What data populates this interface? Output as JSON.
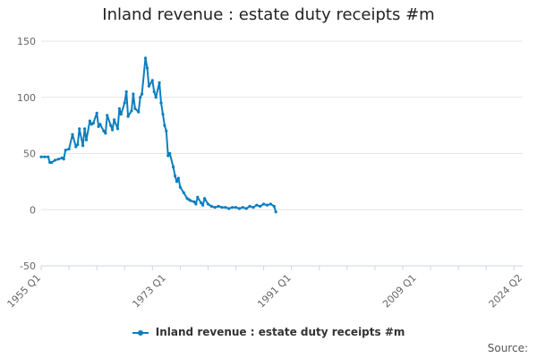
{
  "chart_data": {
    "type": "line",
    "title": "Inland revenue : estate duty receipts #m",
    "xlabel": "",
    "ylabel": "",
    "ylim": [
      -50,
      150
    ],
    "y_ticks": [
      -50,
      0,
      50,
      100,
      150
    ],
    "x_tick_labels": [
      "1955 Q1",
      "1973 Q1",
      "1991 Q1",
      "2009 Q1",
      "2024 Q2"
    ],
    "x_tick_values": [
      1955.0,
      1973.0,
      1991.0,
      2009.0,
      2024.25
    ],
    "xlim": [
      1955.0,
      2024.25
    ],
    "grid": "horizontal",
    "legend_position": "bottom",
    "color": "#0b7fbf",
    "series": [
      {
        "name": "Inland revenue : estate duty receipts #m",
        "x": [
          1955.0,
          1955.5,
          1956.0,
          1956.25,
          1956.5,
          1957.0,
          1957.5,
          1958.0,
          1958.25,
          1958.5,
          1959.0,
          1959.5,
          1960.0,
          1960.25,
          1960.5,
          1961.0,
          1961.25,
          1961.5,
          1962.0,
          1962.25,
          1962.5,
          1963.0,
          1963.25,
          1963.5,
          1964.0,
          1964.25,
          1964.5,
          1965.0,
          1965.25,
          1965.5,
          1966.0,
          1966.25,
          1966.5,
          1967.0,
          1967.25,
          1967.5,
          1968.0,
          1968.25,
          1968.5,
          1969.0,
          1969.25,
          1969.5,
          1970.0,
          1970.25,
          1970.5,
          1971.0,
          1971.25,
          1971.5,
          1972.0,
          1972.25,
          1972.5,
          1972.75,
          1973.0,
          1973.25,
          1973.5,
          1974.0,
          1974.25,
          1974.5,
          1974.75,
          1975.0,
          1975.5,
          1976.0,
          1976.25,
          1976.5,
          1977.0,
          1977.25,
          1977.5,
          1978.0,
          1978.25,
          1978.5,
          1979.0,
          1979.5,
          1980.0,
          1980.5,
          1981.0,
          1981.5,
          1982.0,
          1982.5,
          1983.0,
          1983.5,
          1984.0,
          1984.5,
          1985.0,
          1985.5,
          1986.0,
          1986.5,
          1987.0,
          1987.5,
          1988.0,
          1988.5,
          1988.75
        ],
        "values": [
          47,
          47,
          47,
          42,
          42,
          44,
          45,
          46,
          45,
          53,
          54,
          67,
          56,
          58,
          72,
          57,
          72,
          62,
          79,
          76,
          77,
          86,
          74,
          76,
          70,
          68,
          84,
          75,
          71,
          80,
          72,
          90,
          85,
          95,
          105,
          83,
          88,
          103,
          90,
          87,
          100,
          103,
          135,
          126,
          110,
          115,
          105,
          100,
          113,
          95,
          85,
          75,
          70,
          48,
          50,
          38,
          30,
          25,
          28,
          20,
          15,
          10,
          9,
          8,
          7,
          5,
          11,
          6,
          4,
          10,
          5,
          3,
          2,
          3,
          2,
          2,
          1,
          2,
          2,
          1,
          2,
          1,
          3,
          2,
          4,
          3,
          5,
          4,
          5,
          3,
          -2
        ]
      }
    ]
  },
  "legend": {
    "label": "Inland revenue : estate duty receipts #m"
  },
  "footer": {
    "source_label": "Source:"
  }
}
